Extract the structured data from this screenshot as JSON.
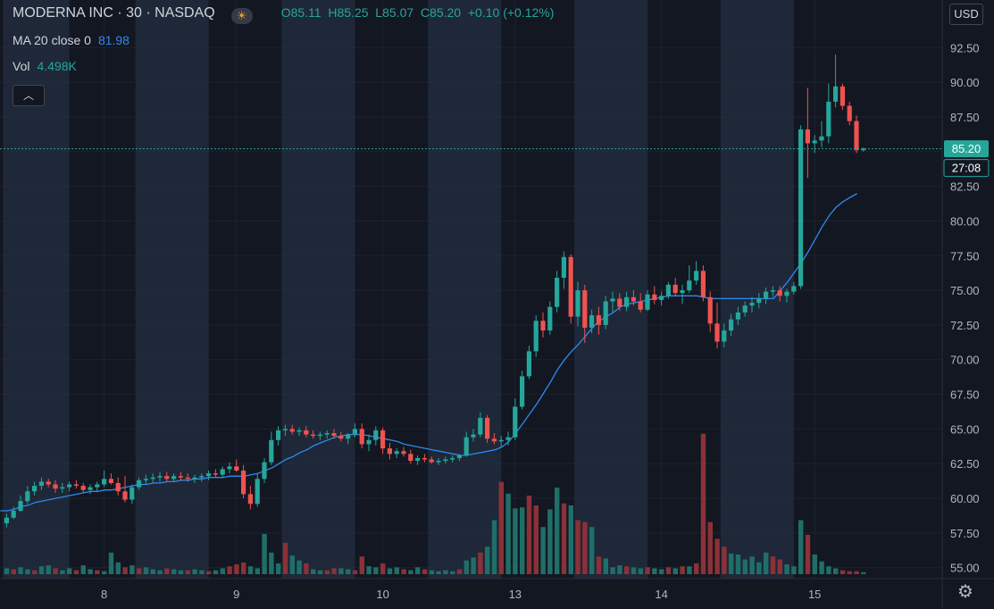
{
  "header": {
    "symbol": "MODERNA INC · 30 · NASDAQ",
    "ohlc": {
      "o": "85.11",
      "h": "85.25",
      "l": "85.07",
      "c": "85.20",
      "chg": "+0.10 (+0.12%)"
    },
    "ma_label": "MA 20 close 0",
    "ma_value": "81.98",
    "vol_label": "Vol",
    "vol_value": "4.498K"
  },
  "currency_button": "USD",
  "colors": {
    "bg": "#131722",
    "session": "#1e2838",
    "up": "#26a69a",
    "down": "#ef5350",
    "ma": "#2e89f0",
    "grid": "#2a2e39"
  },
  "icons": {
    "collapse": "chevron-up-icon",
    "settings": "gear-icon",
    "market": "sun-icon"
  },
  "chart_data": {
    "type": "candlestick",
    "y_ticks": [
      "92.50",
      "90.00",
      "87.50",
      "85.00",
      "82.50",
      "80.00",
      "77.50",
      "75.00",
      "72.50",
      "70.00",
      "67.50",
      "65.00",
      "62.50",
      "60.00",
      "57.50",
      "55.00"
    ],
    "x_ticks": [
      {
        "label": "8",
        "t": 14
      },
      {
        "label": "9",
        "t": 33
      },
      {
        "label": "10",
        "t": 54
      },
      {
        "label": "13",
        "t": 73
      },
      {
        "label": "14",
        "t": 94
      },
      {
        "label": "15",
        "t": 116
      }
    ],
    "last_price": "85.20",
    "countdown": "27:08",
    "ohlc": [
      [
        58.2,
        58.9,
        57.9,
        58.6
      ],
      [
        58.6,
        59.4,
        58.5,
        59.1
      ],
      [
        59.1,
        60.2,
        59.0,
        59.8
      ],
      [
        59.8,
        60.9,
        59.6,
        60.5
      ],
      [
        60.5,
        61.2,
        60.2,
        60.9
      ],
      [
        60.9,
        61.5,
        60.6,
        61.2
      ],
      [
        61.2,
        61.4,
        60.8,
        61.0
      ],
      [
        61.0,
        61.3,
        60.4,
        60.7
      ],
      [
        60.7,
        61.1,
        60.4,
        60.8
      ],
      [
        60.8,
        61.2,
        60.5,
        61.0
      ],
      [
        61.0,
        61.3,
        60.7,
        60.9
      ],
      [
        60.9,
        61.1,
        60.4,
        60.6
      ],
      [
        60.6,
        61.0,
        60.3,
        60.8
      ],
      [
        60.8,
        61.2,
        60.5,
        61.0
      ],
      [
        61.0,
        62.0,
        60.8,
        61.4
      ],
      [
        61.4,
        61.8,
        61.0,
        61.1
      ],
      [
        61.1,
        61.5,
        60.2,
        60.5
      ],
      [
        60.5,
        61.6,
        59.7,
        59.9
      ],
      [
        59.9,
        61.0,
        59.6,
        60.8
      ],
      [
        60.8,
        61.5,
        60.6,
        61.3
      ],
      [
        61.3,
        61.7,
        61.0,
        61.4
      ],
      [
        61.4,
        61.8,
        61.1,
        61.5
      ],
      [
        61.5,
        61.9,
        61.2,
        61.6
      ],
      [
        61.6,
        61.9,
        61.2,
        61.4
      ],
      [
        61.4,
        61.8,
        61.2,
        61.6
      ],
      [
        61.6,
        61.9,
        61.3,
        61.5
      ],
      [
        61.5,
        61.8,
        61.2,
        61.4
      ],
      [
        61.4,
        61.7,
        61.1,
        61.5
      ],
      [
        61.5,
        61.8,
        61.2,
        61.6
      ],
      [
        61.6,
        62.0,
        61.3,
        61.8
      ],
      [
        61.8,
        62.1,
        61.5,
        61.7
      ],
      [
        61.7,
        62.3,
        61.5,
        62.1
      ],
      [
        62.1,
        62.6,
        61.8,
        62.3
      ],
      [
        62.3,
        62.8,
        61.9,
        62.0
      ],
      [
        62.0,
        62.4,
        60.0,
        60.3
      ],
      [
        60.3,
        60.9,
        59.2,
        59.6
      ],
      [
        59.6,
        61.8,
        59.4,
        61.4
      ],
      [
        61.4,
        62.9,
        61.1,
        62.6
      ],
      [
        62.6,
        64.8,
        62.4,
        64.2
      ],
      [
        64.2,
        65.2,
        63.8,
        64.9
      ],
      [
        64.9,
        65.3,
        64.5,
        65.0
      ],
      [
        65.0,
        65.3,
        64.6,
        64.8
      ],
      [
        64.8,
        65.1,
        64.5,
        64.9
      ],
      [
        64.9,
        65.2,
        64.4,
        64.6
      ],
      [
        64.6,
        64.9,
        64.3,
        64.5
      ],
      [
        64.5,
        64.8,
        64.2,
        64.6
      ],
      [
        64.6,
        64.9,
        64.3,
        64.7
      ],
      [
        64.7,
        65.0,
        64.3,
        64.5
      ],
      [
        64.5,
        64.8,
        64.1,
        64.3
      ],
      [
        64.3,
        64.7,
        63.9,
        64.6
      ],
      [
        64.6,
        65.4,
        64.4,
        65.0
      ],
      [
        65.0,
        65.4,
        63.6,
        63.9
      ],
      [
        63.9,
        64.6,
        63.4,
        64.2
      ],
      [
        64.2,
        65.2,
        63.8,
        64.9
      ],
      [
        64.9,
        65.1,
        63.2,
        63.6
      ],
      [
        63.6,
        64.0,
        62.8,
        63.2
      ],
      [
        63.2,
        63.6,
        62.9,
        63.4
      ],
      [
        63.4,
        63.7,
        63.0,
        63.2
      ],
      [
        63.2,
        63.5,
        62.5,
        62.7
      ],
      [
        62.7,
        63.1,
        62.4,
        62.9
      ],
      [
        62.9,
        63.2,
        62.6,
        62.8
      ],
      [
        62.8,
        63.0,
        62.5,
        62.6
      ],
      [
        62.6,
        62.9,
        62.4,
        62.7
      ],
      [
        62.7,
        63.0,
        62.5,
        62.8
      ],
      [
        62.8,
        63.1,
        62.6,
        62.9
      ],
      [
        62.9,
        63.2,
        62.7,
        63.1
      ],
      [
        63.1,
        64.8,
        63.0,
        64.4
      ],
      [
        64.4,
        65.0,
        64.1,
        64.6
      ],
      [
        64.6,
        66.2,
        64.4,
        65.8
      ],
      [
        65.8,
        66.0,
        64.0,
        64.3
      ],
      [
        64.3,
        64.7,
        63.9,
        64.1
      ],
      [
        64.1,
        64.5,
        63.7,
        64.2
      ],
      [
        64.2,
        64.8,
        63.8,
        64.4
      ],
      [
        64.4,
        67.2,
        64.2,
        66.6
      ],
      [
        66.6,
        69.2,
        66.4,
        68.8
      ],
      [
        68.8,
        71.0,
        68.6,
        70.6
      ],
      [
        70.6,
        73.2,
        70.2,
        72.8
      ],
      [
        72.8,
        73.4,
        71.6,
        72.1
      ],
      [
        72.1,
        74.2,
        71.8,
        73.8
      ],
      [
        73.8,
        76.4,
        73.4,
        75.9
      ],
      [
        75.9,
        77.8,
        75.1,
        77.4
      ],
      [
        77.4,
        77.6,
        72.6,
        73.1
      ],
      [
        73.1,
        75.6,
        72.4,
        75.0
      ],
      [
        75.0,
        75.4,
        71.2,
        72.3
      ],
      [
        72.3,
        73.6,
        71.9,
        73.2
      ],
      [
        73.2,
        73.8,
        71.8,
        72.5
      ],
      [
        72.5,
        74.6,
        72.2,
        74.2
      ],
      [
        74.2,
        74.9,
        73.4,
        74.4
      ],
      [
        74.4,
        74.8,
        73.5,
        73.8
      ],
      [
        73.8,
        74.9,
        73.5,
        74.5
      ],
      [
        74.5,
        75.0,
        73.9,
        74.2
      ],
      [
        74.2,
        74.8,
        73.4,
        73.6
      ],
      [
        73.6,
        75.0,
        73.5,
        74.7
      ],
      [
        74.7,
        75.3,
        74.0,
        74.3
      ],
      [
        74.3,
        74.9,
        73.9,
        74.6
      ],
      [
        74.6,
        75.6,
        74.4,
        75.4
      ],
      [
        75.4,
        75.9,
        74.6,
        74.8
      ],
      [
        74.8,
        75.4,
        74.0,
        75.0
      ],
      [
        75.0,
        76.8,
        74.8,
        75.7
      ],
      [
        75.7,
        77.1,
        75.4,
        76.4
      ],
      [
        76.4,
        76.8,
        74.2,
        74.5
      ],
      [
        74.5,
        74.9,
        72.0,
        72.6
      ],
      [
        72.6,
        74.1,
        70.8,
        71.3
      ],
      [
        71.3,
        72.6,
        70.9,
        72.1
      ],
      [
        72.1,
        73.3,
        71.7,
        72.9
      ],
      [
        72.9,
        73.8,
        72.5,
        73.4
      ],
      [
        73.4,
        74.2,
        73.1,
        73.9
      ],
      [
        73.9,
        74.5,
        73.4,
        74.1
      ],
      [
        74.1,
        74.8,
        73.7,
        74.4
      ],
      [
        74.4,
        75.2,
        74.0,
        74.9
      ],
      [
        74.9,
        75.3,
        74.5,
        75.0
      ],
      [
        75.0,
        75.3,
        74.2,
        74.6
      ],
      [
        74.6,
        75.1,
        74.1,
        74.9
      ],
      [
        74.9,
        75.6,
        74.7,
        75.3
      ],
      [
        75.3,
        86.9,
        75.1,
        86.6
      ],
      [
        86.6,
        89.6,
        83.1,
        85.6
      ],
      [
        85.6,
        86.2,
        84.9,
        85.8
      ],
      [
        85.8,
        87.2,
        85.3,
        86.1
      ],
      [
        86.1,
        89.9,
        85.6,
        88.6
      ],
      [
        88.6,
        92.0,
        88.2,
        89.7
      ],
      [
        89.7,
        89.9,
        88.0,
        88.3
      ],
      [
        88.3,
        88.6,
        86.9,
        87.2
      ],
      [
        87.2,
        87.6,
        84.9,
        85.1
      ],
      [
        85.1,
        85.3,
        85.0,
        85.2
      ]
    ],
    "volume": [
      [
        1,
        6
      ],
      [
        0,
        5
      ],
      [
        1,
        7
      ],
      [
        1,
        5
      ],
      [
        0,
        4
      ],
      [
        1,
        8
      ],
      [
        1,
        9
      ],
      [
        0,
        6
      ],
      [
        1,
        4
      ],
      [
        1,
        6
      ],
      [
        0,
        4
      ],
      [
        1,
        9
      ],
      [
        1,
        5
      ],
      [
        0,
        4
      ],
      [
        1,
        3
      ],
      [
        1,
        22
      ],
      [
        1,
        12
      ],
      [
        0,
        7
      ],
      [
        1,
        9
      ],
      [
        0,
        6
      ],
      [
        1,
        7
      ],
      [
        1,
        5
      ],
      [
        1,
        4
      ],
      [
        0,
        6
      ],
      [
        1,
        5
      ],
      [
        1,
        4
      ],
      [
        0,
        4
      ],
      [
        1,
        5
      ],
      [
        1,
        4
      ],
      [
        0,
        3
      ],
      [
        1,
        4
      ],
      [
        1,
        6
      ],
      [
        0,
        8
      ],
      [
        0,
        10
      ],
      [
        0,
        12
      ],
      [
        1,
        8
      ],
      [
        1,
        6
      ],
      [
        1,
        41
      ],
      [
        1,
        22
      ],
      [
        1,
        11
      ],
      [
        0,
        32
      ],
      [
        1,
        19
      ],
      [
        1,
        14
      ],
      [
        0,
        11
      ],
      [
        1,
        5
      ],
      [
        1,
        4
      ],
      [
        0,
        4
      ],
      [
        0,
        6
      ],
      [
        1,
        6
      ],
      [
        1,
        5
      ],
      [
        0,
        4
      ],
      [
        0,
        18
      ],
      [
        1,
        8
      ],
      [
        1,
        7
      ],
      [
        0,
        11
      ],
      [
        1,
        6
      ],
      [
        1,
        7
      ],
      [
        0,
        5
      ],
      [
        1,
        4
      ],
      [
        1,
        7
      ],
      [
        0,
        5
      ],
      [
        1,
        4
      ],
      [
        1,
        3
      ],
      [
        1,
        4
      ],
      [
        1,
        3
      ],
      [
        0,
        5
      ],
      [
        1,
        14
      ],
      [
        1,
        17
      ],
      [
        0,
        22
      ],
      [
        1,
        28
      ],
      [
        1,
        55
      ],
      [
        0,
        94
      ],
      [
        1,
        82
      ],
      [
        1,
        67
      ],
      [
        1,
        68
      ],
      [
        0,
        80
      ],
      [
        0,
        70
      ],
      [
        1,
        48
      ],
      [
        1,
        66
      ],
      [
        1,
        88
      ],
      [
        0,
        72
      ],
      [
        1,
        70
      ],
      [
        0,
        55
      ],
      [
        0,
        53
      ],
      [
        1,
        48
      ],
      [
        0,
        18
      ],
      [
        1,
        16
      ],
      [
        1,
        7
      ],
      [
        1,
        9
      ],
      [
        0,
        8
      ],
      [
        1,
        7
      ],
      [
        1,
        6
      ],
      [
        0,
        7
      ],
      [
        1,
        6
      ],
      [
        1,
        5
      ],
      [
        0,
        7
      ],
      [
        1,
        6
      ],
      [
        0,
        8
      ],
      [
        1,
        8
      ],
      [
        0,
        11
      ],
      [
        0,
        143
      ],
      [
        0,
        53
      ],
      [
        0,
        36
      ],
      [
        0,
        28
      ],
      [
        1,
        21
      ],
      [
        1,
        20
      ],
      [
        1,
        15
      ],
      [
        1,
        18
      ],
      [
        1,
        12
      ],
      [
        1,
        22
      ],
      [
        0,
        18
      ],
      [
        0,
        15
      ],
      [
        1,
        10
      ],
      [
        1,
        8
      ],
      [
        1,
        55
      ],
      [
        0,
        40
      ],
      [
        1,
        20
      ],
      [
        1,
        13
      ],
      [
        1,
        8
      ],
      [
        1,
        6
      ],
      [
        0,
        4
      ],
      [
        0,
        3
      ],
      [
        0,
        3
      ],
      [
        1,
        2
      ]
    ],
    "ma20": [
      59.1,
      59.1,
      59.2,
      59.4,
      59.5,
      59.7,
      59.8,
      59.9,
      60.0,
      60.1,
      60.2,
      60.3,
      60.4,
      60.5,
      60.5,
      60.6,
      60.6,
      60.7,
      60.8,
      60.9,
      61.0,
      61.0,
      61.1,
      61.1,
      61.2,
      61.2,
      61.3,
      61.3,
      61.4,
      61.4,
      61.5,
      61.5,
      61.5,
      61.6,
      61.6,
      61.6,
      61.7,
      61.8,
      62.0,
      62.2,
      62.5,
      62.8,
      63.0,
      63.3,
      63.5,
      63.8,
      64.0,
      64.2,
      64.4,
      64.5,
      64.6,
      64.6,
      64.6,
      64.5,
      64.4,
      64.3,
      64.2,
      64.1,
      63.9,
      63.8,
      63.7,
      63.6,
      63.5,
      63.4,
      63.3,
      63.2,
      63.1,
      63.1,
      63.2,
      63.3,
      63.4,
      63.5,
      63.7,
      64.1,
      64.7,
      65.4,
      66.1,
      66.8,
      67.6,
      68.4,
      69.3,
      70.0,
      70.6,
      71.1,
      71.7,
      72.3,
      72.8,
      73.1,
      73.4,
      73.8,
      74.0,
      74.1,
      74.2,
      74.3,
      74.4,
      74.5,
      74.6,
      74.6,
      74.6,
      74.6,
      74.6,
      74.5,
      74.4,
      74.4,
      74.4,
      74.4,
      74.4,
      74.4,
      74.4,
      74.4,
      74.4,
      74.4,
      75.0,
      75.6,
      76.3,
      77.0,
      77.8,
      78.7,
      79.6,
      80.4,
      81.0,
      81.4,
      81.7,
      81.98
    ]
  }
}
